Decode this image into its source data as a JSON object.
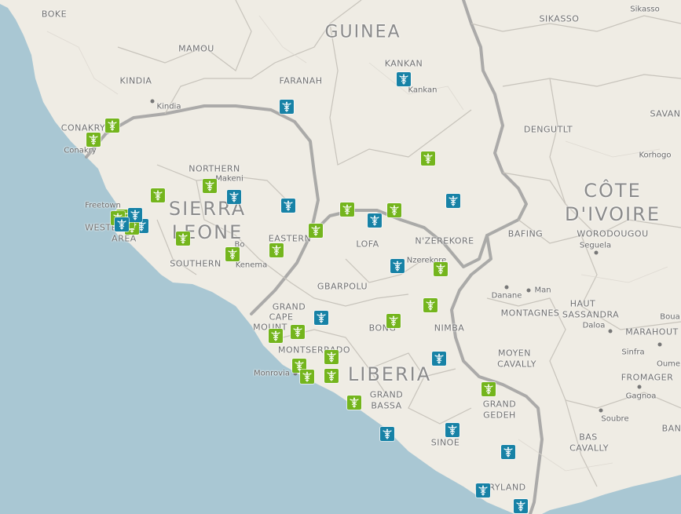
{
  "map": {
    "colors": {
      "water": "#a9c7d3",
      "land": "#efece4",
      "border": "#a6a6a6",
      "blue_marker": "#1782a6",
      "green_marker": "#74b51d"
    },
    "marker_icon": "caduceus-icon",
    "labels": {
      "country": {
        "guinea": "GUINEA",
        "sierra_leone_1": "SIERRA",
        "sierra_leone_2": "LEONE",
        "liberia": "LIBERIA",
        "cote_divoire_1": "CÔTE",
        "cote_divoire_2": "D'IVOIRE"
      },
      "region": {
        "boke": "BOKE",
        "mamou": "MAMOU",
        "kindia": "KINDIA",
        "faranah": "FARANAH",
        "kankan": "KANKAN",
        "sikasso": "SIKASSO",
        "conakry": "CONAKRY",
        "northern": "NORTHERN",
        "western_1": "WESTERN",
        "western_2": "AREA",
        "eastern": "EASTERN",
        "southern": "SOUTHERN",
        "lofa": "LOFA",
        "nzerekore": "N'ZEREKORE",
        "bafing": "BAFING",
        "dengutlt": "DENGUTLT",
        "worodougou": "WORODOUGOU",
        "savan": "SAVAN",
        "gbarpolu": "GBARPOLU",
        "grand_cape_mount_1": "GRAND",
        "grand_cape_mount_2": "CAPE",
        "grand_cape_mount_3": "MOUNT",
        "montserrado": "MONTSERRADO",
        "bong": "BONG",
        "nimba": "NIMBA",
        "montagnes": "MONTAGNES",
        "haut_sassandra_1": "HAUT",
        "haut_sassandra_2": "SASSANDRA",
        "marahout": "MARAHOUT",
        "moyen_cavally_1": "MOYEN",
        "moyen_cavally_2": "CAVALLY",
        "fromager": "FROMAGER",
        "grand_bassa_1": "GRAND",
        "grand_bassa_2": "BASSA",
        "grand_gedeh_1": "GRAND",
        "grand_gedeh_2": "GEDEH",
        "sinoe": "SINOE",
        "bas_cavally_1": "BAS",
        "bas_cavally_2": "CAVALLY",
        "maryland": "MARYLAND",
        "ban": "BAN"
      },
      "city": {
        "sikasso": "Sikasso",
        "kankan": "Kankan",
        "kindia": "Kindia",
        "conakry": "Conakry",
        "korhogo": "Korhogo",
        "makeni": "Makeni",
        "freetown": "Freetown",
        "bo": "Bo",
        "kenema": "Kenema",
        "nzerekore": "Nzerekore",
        "seguela": "Seguela",
        "danane": "Danane",
        "man": "Man",
        "daloa": "Daloa",
        "sinfra": "Sinfra",
        "oume": "Oume",
        "monrovia": "Monrovia",
        "gagnoa": "Gagnoa",
        "soubre": "Soubre",
        "boua": "Boua"
      }
    },
    "markers": [
      {
        "color": "green"
      },
      {
        "color": "green"
      },
      {
        "color": "blue"
      },
      {
        "color": "blue"
      },
      {
        "color": "green"
      },
      {
        "color": "green"
      },
      {
        "color": "blue"
      },
      {
        "color": "green"
      },
      {
        "color": "blue"
      },
      {
        "color": "blue"
      },
      {
        "color": "green"
      },
      {
        "color": "green"
      },
      {
        "color": "blue"
      },
      {
        "color": "green"
      },
      {
        "color": "green"
      },
      {
        "color": "green"
      },
      {
        "color": "blue"
      },
      {
        "color": "green"
      },
      {
        "color": "green"
      },
      {
        "color": "green"
      },
      {
        "color": "blue"
      },
      {
        "color": "green"
      },
      {
        "color": "green"
      },
      {
        "color": "blue"
      },
      {
        "color": "green"
      },
      {
        "color": "green"
      },
      {
        "color": "blue"
      },
      {
        "color": "green"
      },
      {
        "color": "green"
      },
      {
        "color": "green"
      },
      {
        "color": "green"
      },
      {
        "color": "green"
      },
      {
        "color": "green"
      },
      {
        "color": "green"
      },
      {
        "color": "green"
      },
      {
        "color": "blue"
      },
      {
        "color": "blue"
      },
      {
        "color": "green"
      },
      {
        "color": "blue"
      },
      {
        "color": "blue"
      },
      {
        "color": "blue"
      },
      {
        "color": "blue"
      },
      {
        "color": "blue"
      }
    ]
  }
}
